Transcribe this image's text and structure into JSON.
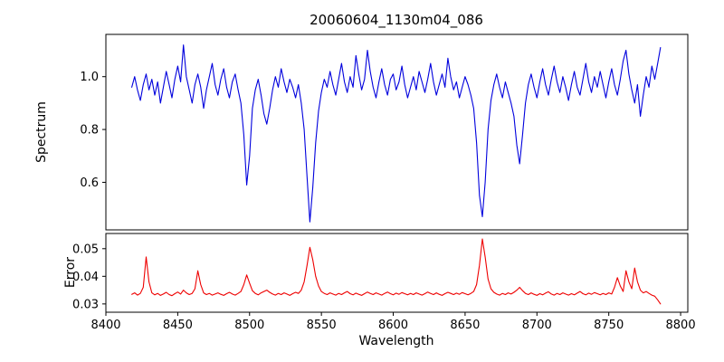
{
  "chart_data": {
    "type": "line",
    "title": "20060604_1130m04_086",
    "xlabel": "Wavelength",
    "grid": false,
    "legend": false,
    "xlim": [
      8400,
      8805
    ],
    "xticks": [
      8400,
      8450,
      8500,
      8550,
      8600,
      8650,
      8700,
      8750,
      8800
    ],
    "xtick_labels": [
      "8400",
      "8450",
      "8500",
      "8550",
      "8600",
      "8650",
      "8700",
      "8750",
      "8800"
    ],
    "x": [
      8418,
      8420,
      8422,
      8424,
      8426,
      8428,
      8430,
      8432,
      8434,
      8436,
      8438,
      8440,
      8442,
      8444,
      8446,
      8448,
      8450,
      8452,
      8454,
      8456,
      8458,
      8460,
      8462,
      8464,
      8466,
      8468,
      8470,
      8472,
      8474,
      8476,
      8478,
      8480,
      8482,
      8484,
      8486,
      8488,
      8490,
      8492,
      8494,
      8496,
      8498,
      8500,
      8502,
      8504,
      8506,
      8508,
      8510,
      8512,
      8514,
      8516,
      8518,
      8520,
      8522,
      8524,
      8526,
      8528,
      8530,
      8532,
      8534,
      8536,
      8538,
      8540,
      8542,
      8544,
      8546,
      8548,
      8550,
      8552,
      8554,
      8556,
      8558,
      8560,
      8562,
      8564,
      8566,
      8568,
      8570,
      8572,
      8574,
      8576,
      8578,
      8580,
      8582,
      8584,
      8586,
      8588,
      8590,
      8592,
      8594,
      8596,
      8598,
      8600,
      8602,
      8604,
      8606,
      8608,
      8610,
      8612,
      8614,
      8616,
      8618,
      8620,
      8622,
      8624,
      8626,
      8628,
      8630,
      8632,
      8634,
      8636,
      8638,
      8640,
      8642,
      8644,
      8646,
      8648,
      8650,
      8652,
      8654,
      8656,
      8658,
      8660,
      8662,
      8664,
      8666,
      8668,
      8670,
      8672,
      8674,
      8676,
      8678,
      8680,
      8682,
      8684,
      8686,
      8688,
      8690,
      8692,
      8694,
      8696,
      8698,
      8700,
      8702,
      8704,
      8706,
      8708,
      8710,
      8712,
      8714,
      8716,
      8718,
      8720,
      8722,
      8724,
      8726,
      8728,
      8730,
      8732,
      8734,
      8736,
      8738,
      8740,
      8742,
      8744,
      8746,
      8748,
      8750,
      8752,
      8754,
      8756,
      8758,
      8760,
      8762,
      8764,
      8766,
      8768,
      8770,
      8772,
      8774,
      8776,
      8778,
      8780,
      8782,
      8784,
      8786
    ],
    "panels": [
      {
        "name": "spectrum",
        "ylabel": "Spectrum",
        "color": "#0000dd",
        "ylim": [
          0.42,
          1.16
        ],
        "yticks": [
          0.6,
          0.8,
          1.0
        ],
        "ytick_labels": [
          "0.6",
          "0.8",
          "1.0"
        ],
        "absorption_lines": [
          {
            "wavelength": 8498,
            "min": 0.59
          },
          {
            "wavelength": 8542,
            "min": 0.45
          },
          {
            "wavelength": 8662,
            "min": 0.47
          },
          {
            "wavelength": 8688,
            "min": 0.67
          }
        ],
        "values": [
          0.96,
          1.0,
          0.95,
          0.91,
          0.97,
          1.01,
          0.95,
          0.99,
          0.93,
          0.98,
          0.9,
          0.96,
          1.02,
          0.97,
          0.92,
          0.99,
          1.04,
          0.98,
          1.12,
          1.0,
          0.95,
          0.9,
          0.97,
          1.01,
          0.96,
          0.88,
          0.95,
          1.0,
          1.05,
          0.97,
          0.93,
          0.99,
          1.03,
          0.96,
          0.92,
          0.98,
          1.01,
          0.95,
          0.9,
          0.78,
          0.59,
          0.7,
          0.88,
          0.95,
          0.99,
          0.93,
          0.86,
          0.82,
          0.88,
          0.95,
          1.0,
          0.96,
          1.03,
          0.98,
          0.94,
          0.99,
          0.96,
          0.92,
          0.97,
          0.9,
          0.8,
          0.62,
          0.45,
          0.58,
          0.75,
          0.87,
          0.94,
          0.99,
          0.96,
          1.02,
          0.97,
          0.93,
          0.99,
          1.05,
          0.98,
          0.94,
          1.0,
          0.96,
          1.08,
          1.01,
          0.95,
          0.99,
          1.1,
          1.02,
          0.96,
          0.92,
          0.98,
          1.03,
          0.97,
          0.93,
          0.99,
          1.01,
          0.95,
          0.98,
          1.04,
          0.97,
          0.92,
          0.96,
          1.0,
          0.95,
          1.02,
          0.98,
          0.94,
          0.99,
          1.05,
          0.98,
          0.93,
          0.97,
          1.01,
          0.96,
          1.07,
          1.0,
          0.95,
          0.98,
          0.92,
          0.96,
          1.0,
          0.97,
          0.93,
          0.88,
          0.75,
          0.55,
          0.47,
          0.6,
          0.8,
          0.91,
          0.97,
          1.01,
          0.96,
          0.92,
          0.98,
          0.94,
          0.9,
          0.85,
          0.74,
          0.67,
          0.78,
          0.9,
          0.97,
          1.01,
          0.96,
          0.92,
          0.98,
          1.03,
          0.97,
          0.93,
          0.99,
          1.04,
          0.98,
          0.94,
          1.0,
          0.96,
          0.91,
          0.97,
          1.02,
          0.96,
          0.93,
          0.99,
          1.05,
          0.98,
          0.94,
          1.0,
          0.96,
          1.02,
          0.97,
          0.92,
          0.98,
          1.03,
          0.97,
          0.93,
          0.99,
          1.06,
          1.1,
          1.01,
          0.95,
          0.9,
          0.97,
          0.85,
          0.93,
          1.0,
          0.96,
          1.04,
          0.99,
          1.05,
          1.11
        ]
      },
      {
        "name": "error",
        "ylabel": "Error",
        "color": "#ee0000",
        "ylim": [
          0.027,
          0.0555
        ],
        "yticks": [
          0.03,
          0.04,
          0.05
        ],
        "ytick_labels": [
          "0.03",
          "0.04",
          "0.05"
        ],
        "values": [
          0.0335,
          0.034,
          0.0332,
          0.0338,
          0.036,
          0.047,
          0.038,
          0.034,
          0.0333,
          0.0338,
          0.0331,
          0.0336,
          0.0342,
          0.0334,
          0.033,
          0.0337,
          0.0343,
          0.0336,
          0.035,
          0.034,
          0.0334,
          0.0338,
          0.0355,
          0.042,
          0.037,
          0.034,
          0.0334,
          0.0338,
          0.0332,
          0.0336,
          0.034,
          0.0335,
          0.0331,
          0.0337,
          0.0342,
          0.0336,
          0.0332,
          0.0338,
          0.0345,
          0.037,
          0.0405,
          0.0375,
          0.0348,
          0.0338,
          0.0333,
          0.034,
          0.0345,
          0.035,
          0.0342,
          0.0336,
          0.0332,
          0.0338,
          0.0334,
          0.034,
          0.0336,
          0.0331,
          0.0337,
          0.0342,
          0.0338,
          0.035,
          0.038,
          0.044,
          0.0505,
          0.046,
          0.04,
          0.0365,
          0.0345,
          0.0338,
          0.0334,
          0.034,
          0.0336,
          0.0332,
          0.0338,
          0.0334,
          0.034,
          0.0345,
          0.0337,
          0.0333,
          0.0339,
          0.0335,
          0.0331,
          0.0337,
          0.0343,
          0.0338,
          0.0334,
          0.034,
          0.0336,
          0.0332,
          0.0338,
          0.0343,
          0.0337,
          0.0333,
          0.0339,
          0.0335,
          0.0341,
          0.0337,
          0.0333,
          0.0338,
          0.0334,
          0.034,
          0.0336,
          0.0332,
          0.0337,
          0.0343,
          0.0338,
          0.0334,
          0.034,
          0.0335,
          0.0331,
          0.0337,
          0.0342,
          0.0338,
          0.0334,
          0.0339,
          0.0335,
          0.0341,
          0.0337,
          0.0333,
          0.0338,
          0.0345,
          0.037,
          0.044,
          0.0535,
          0.047,
          0.039,
          0.0355,
          0.0342,
          0.0336,
          0.0332,
          0.0338,
          0.0334,
          0.034,
          0.0336,
          0.0342,
          0.035,
          0.036,
          0.0348,
          0.0338,
          0.0334,
          0.034,
          0.0335,
          0.0331,
          0.0337,
          0.0333,
          0.0339,
          0.0344,
          0.0336,
          0.0332,
          0.0338,
          0.0334,
          0.034,
          0.0336,
          0.0332,
          0.0337,
          0.0333,
          0.0339,
          0.0345,
          0.0337,
          0.0333,
          0.0339,
          0.0335,
          0.0341,
          0.0337,
          0.0333,
          0.0338,
          0.0334,
          0.034,
          0.0336,
          0.036,
          0.0395,
          0.0365,
          0.0345,
          0.042,
          0.038,
          0.0355,
          0.043,
          0.038,
          0.035,
          0.034,
          0.0345,
          0.0338,
          0.0332,
          0.0328,
          0.0315,
          0.03
        ]
      }
    ]
  }
}
